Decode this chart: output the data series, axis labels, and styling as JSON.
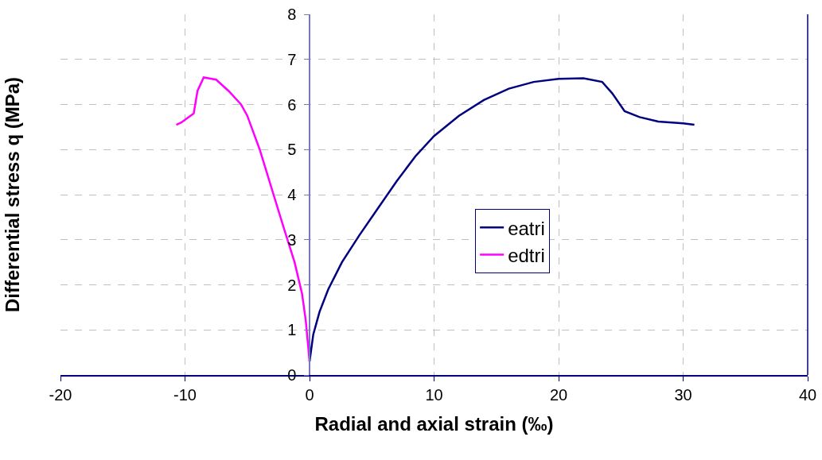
{
  "chart_data": {
    "type": "line",
    "xlabel": "Radial and axial strain (‰)",
    "ylabel": "Differential stress q (MPa)",
    "xlim": [
      -20,
      40
    ],
    "xticks": [
      -20,
      -10,
      0,
      10,
      20,
      30,
      40
    ],
    "ylim": [
      0,
      8
    ],
    "yticks": [
      0,
      1,
      2,
      3,
      4,
      5,
      6,
      7,
      8
    ],
    "grid": true,
    "legend": "center",
    "line_style": "solid",
    "marker": "none",
    "series": [
      {
        "name": "eatri",
        "color": "#000080",
        "x": [
          0,
          0.3,
          0.8,
          1.5,
          2.6,
          4,
          5.5,
          7,
          8.5,
          10,
          12,
          14,
          16,
          18,
          20,
          22,
          23.5,
          24.3,
          25.3,
          26.5,
          28,
          30,
          30.9
        ],
        "values": [
          0.3,
          0.9,
          1.4,
          1.9,
          2.5,
          3.1,
          3.7,
          4.3,
          4.85,
          5.3,
          5.75,
          6.1,
          6.35,
          6.5,
          6.57,
          6.58,
          6.5,
          6.25,
          5.85,
          5.72,
          5.62,
          5.58,
          5.55
        ]
      },
      {
        "name": "edtri",
        "color": "#ff00ff",
        "x": [
          0,
          -0.3,
          -0.6,
          -1.2,
          -2,
          -3,
          -4,
          -5,
          -5.5,
          -6.5,
          -7.5,
          -8.5,
          -9,
          -9.3,
          -10.3,
          -10.7
        ],
        "values": [
          0.3,
          1.2,
          1.8,
          2.5,
          3.2,
          4.1,
          5.0,
          5.75,
          6.0,
          6.3,
          6.55,
          6.6,
          6.3,
          5.8,
          5.6,
          5.55
        ]
      }
    ]
  }
}
